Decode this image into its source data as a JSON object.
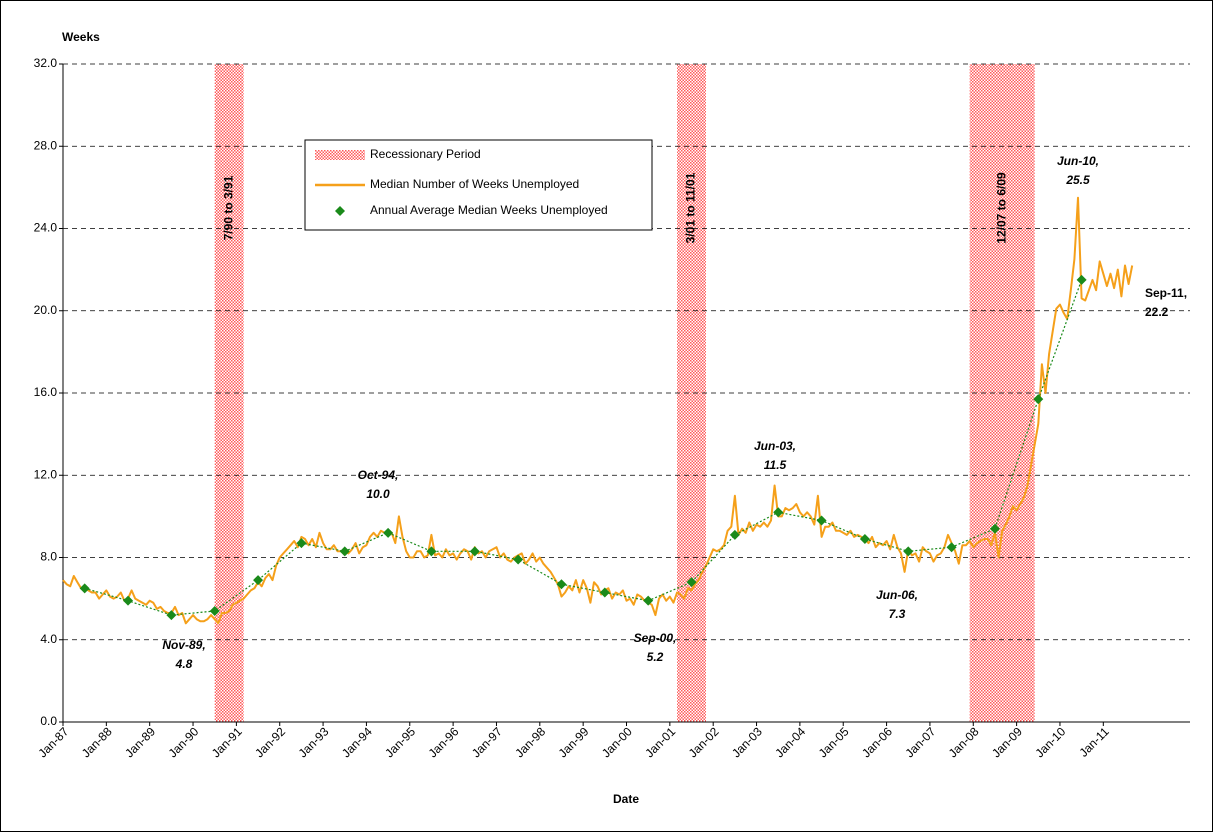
{
  "chart_data": {
    "type": "line",
    "y_label": "Weeks",
    "x_label": "Date",
    "xlim": [
      "Jan-87",
      "Jan-13"
    ],
    "xticks": [
      "Jan-87",
      "Jan-88",
      "Jan-89",
      "Jan-90",
      "Jan-91",
      "Jan-92",
      "Jan-93",
      "Jan-94",
      "Jan-95",
      "Jan-96",
      "Jan-97",
      "Jan-98",
      "Jan-99",
      "Jan-00",
      "Jan-01",
      "Jan-02",
      "Jan-03",
      "Jan-04",
      "Jan-05",
      "Jan-06",
      "Jan-07",
      "Jan-08",
      "Jan-09",
      "Jan-10",
      "Jan-11"
    ],
    "ylim": [
      0,
      32
    ],
    "yticks": [
      {
        "value": 0,
        "label": "0.0"
      },
      {
        "value": 4,
        "label": "4.0"
      },
      {
        "value": 8,
        "label": "8.0"
      },
      {
        "value": 12,
        "label": "12.0"
      },
      {
        "value": 16,
        "label": "16.0"
      },
      {
        "value": 20,
        "label": "20.0"
      },
      {
        "value": 24,
        "label": "24.0"
      },
      {
        "value": 28,
        "label": "28.0"
      },
      {
        "value": 32,
        "label": "32.0"
      }
    ],
    "grid": true,
    "recession_name": "Recessionary Period",
    "recession_color": "#ff5a5a",
    "recessions": [
      {
        "label": "7/90 to 3/91",
        "start": "Jul-90",
        "end": "Mar-91"
      },
      {
        "label": "3/01 to 11/01",
        "start": "Mar-01",
        "end": "Nov-01"
      },
      {
        "label": "12/07 to 6/09",
        "start": "Dec-07",
        "end": "Jun-09"
      }
    ],
    "series": [
      {
        "name": "Median Number of Weeks Unemployed",
        "color": "#f5a01a",
        "x": [
          "Jan-87",
          "Feb-87",
          "Mar-87",
          "Apr-87",
          "May-87",
          "Jun-87",
          "Jul-87",
          "Aug-87",
          "Sep-87",
          "Oct-87",
          "Nov-87",
          "Dec-87",
          "Jan-88",
          "Feb-88",
          "Mar-88",
          "Apr-88",
          "May-88",
          "Jun-88",
          "Jul-88",
          "Aug-88",
          "Sep-88",
          "Oct-88",
          "Nov-88",
          "Dec-88",
          "Jan-89",
          "Feb-89",
          "Mar-89",
          "Apr-89",
          "May-89",
          "Jun-89",
          "Jul-89",
          "Aug-89",
          "Sep-89",
          "Oct-89",
          "Nov-89",
          "Dec-89",
          "Jan-90",
          "Feb-90",
          "Mar-90",
          "Apr-90",
          "May-90",
          "Jun-90",
          "Jul-90",
          "Aug-90",
          "Sep-90",
          "Oct-90",
          "Nov-90",
          "Dec-90",
          "Jan-91",
          "Feb-91",
          "Mar-91",
          "Apr-91",
          "May-91",
          "Jun-91",
          "Jul-91",
          "Aug-91",
          "Sep-91",
          "Oct-91",
          "Nov-91",
          "Dec-91",
          "Jan-92",
          "Feb-92",
          "Mar-92",
          "Apr-92",
          "May-92",
          "Jun-92",
          "Jul-92",
          "Aug-92",
          "Sep-92",
          "Oct-92",
          "Nov-92",
          "Dec-92",
          "Jan-93",
          "Feb-93",
          "Mar-93",
          "Apr-93",
          "May-93",
          "Jun-93",
          "Jul-93",
          "Aug-93",
          "Sep-93",
          "Oct-93",
          "Nov-93",
          "Dec-93",
          "Jan-94",
          "Feb-94",
          "Mar-94",
          "Apr-94",
          "May-94",
          "Jun-94",
          "Jul-94",
          "Aug-94",
          "Sep-94",
          "Oct-94",
          "Nov-94",
          "Dec-94",
          "Jan-95",
          "Feb-95",
          "Mar-95",
          "Apr-95",
          "May-95",
          "Jun-95",
          "Jul-95",
          "Aug-95",
          "Sep-95",
          "Oct-95",
          "Nov-95",
          "Dec-95",
          "Jan-96",
          "Feb-96",
          "Mar-96",
          "Apr-96",
          "May-96",
          "Jun-96",
          "Jul-96",
          "Aug-96",
          "Sep-96",
          "Oct-96",
          "Nov-96",
          "Dec-96",
          "Jan-97",
          "Feb-97",
          "Mar-97",
          "Apr-97",
          "May-97",
          "Jun-97",
          "Jul-97",
          "Aug-97",
          "Sep-97",
          "Oct-97",
          "Nov-97",
          "Dec-97",
          "Jan-98",
          "Feb-98",
          "Mar-98",
          "Apr-98",
          "May-98",
          "Jun-98",
          "Jul-98",
          "Aug-98",
          "Sep-98",
          "Oct-98",
          "Nov-98",
          "Dec-98",
          "Jan-99",
          "Feb-99",
          "Mar-99",
          "Apr-99",
          "May-99",
          "Jun-99",
          "Jul-99",
          "Aug-99",
          "Sep-99",
          "Oct-99",
          "Nov-99",
          "Dec-99",
          "Jan-00",
          "Feb-00",
          "Mar-00",
          "Apr-00",
          "May-00",
          "Jun-00",
          "Jul-00",
          "Aug-00",
          "Sep-00",
          "Oct-00",
          "Nov-00",
          "Dec-00",
          "Jan-01",
          "Feb-01",
          "Mar-01",
          "Apr-01",
          "May-01",
          "Jun-01",
          "Jul-01",
          "Aug-01",
          "Sep-01",
          "Oct-01",
          "Nov-01",
          "Dec-01",
          "Jan-02",
          "Feb-02",
          "Mar-02",
          "Apr-02",
          "May-02",
          "Jun-02",
          "Jul-02",
          "Aug-02",
          "Sep-02",
          "Oct-02",
          "Nov-02",
          "Dec-02",
          "Jan-03",
          "Feb-03",
          "Mar-03",
          "Apr-03",
          "May-03",
          "Jun-03",
          "Jul-03",
          "Aug-03",
          "Sep-03",
          "Oct-03",
          "Nov-03",
          "Dec-03",
          "Jan-04",
          "Feb-04",
          "Mar-04",
          "Apr-04",
          "May-04",
          "Jun-04",
          "Jul-04",
          "Aug-04",
          "Sep-04",
          "Oct-04",
          "Nov-04",
          "Dec-04",
          "Jan-05",
          "Feb-05",
          "Mar-05",
          "Apr-05",
          "May-05",
          "Jun-05",
          "Jul-05",
          "Aug-05",
          "Sep-05",
          "Oct-05",
          "Nov-05",
          "Dec-05",
          "Jan-06",
          "Feb-06",
          "Mar-06",
          "Apr-06",
          "May-06",
          "Jun-06",
          "Jul-06",
          "Aug-06",
          "Sep-06",
          "Oct-06",
          "Nov-06",
          "Dec-06",
          "Jan-07",
          "Feb-07",
          "Mar-07",
          "Apr-07",
          "May-07",
          "Jun-07",
          "Jul-07",
          "Aug-07",
          "Sep-07",
          "Oct-07",
          "Nov-07",
          "Dec-07",
          "Jan-08",
          "Feb-08",
          "Mar-08",
          "Apr-08",
          "May-08",
          "Jun-08",
          "Jul-08",
          "Aug-08",
          "Sep-08",
          "Oct-08",
          "Nov-08",
          "Dec-08",
          "Jan-09",
          "Feb-09",
          "Mar-09",
          "Apr-09",
          "May-09",
          "Jun-09",
          "Jul-09",
          "Aug-09",
          "Sep-09",
          "Oct-09",
          "Nov-09",
          "Dec-09",
          "Jan-10",
          "Feb-10",
          "Mar-10",
          "Apr-10",
          "May-10",
          "Jun-10",
          "Jul-10",
          "Aug-10",
          "Sep-10",
          "Oct-10",
          "Nov-10",
          "Dec-10",
          "Jan-11",
          "Feb-11",
          "Mar-11",
          "Apr-11",
          "May-11",
          "Jun-11",
          "Jul-11",
          "Aug-11",
          "Sep-11"
        ],
        "values": [
          6.9,
          6.7,
          6.6,
          7.1,
          6.8,
          6.5,
          6.5,
          6.4,
          6.3,
          6.3,
          6.0,
          6.2,
          6.4,
          6.1,
          6.0,
          6.1,
          6.3,
          5.9,
          6.0,
          6.4,
          6.0,
          5.9,
          5.8,
          5.7,
          5.9,
          5.8,
          5.5,
          5.6,
          5.4,
          5.3,
          5.3,
          5.6,
          5.2,
          5.3,
          4.8,
          5.0,
          5.2,
          5.0,
          4.9,
          4.9,
          5.0,
          5.2,
          5.0,
          4.8,
          5.3,
          5.3,
          5.4,
          5.7,
          5.8,
          5.9,
          6.0,
          6.2,
          6.4,
          6.5,
          6.8,
          6.6,
          7.0,
          7.2,
          6.9,
          7.6,
          8.0,
          8.2,
          8.4,
          8.6,
          8.8,
          8.5,
          9.0,
          8.9,
          8.6,
          8.9,
          8.5,
          9.2,
          8.7,
          8.4,
          8.4,
          8.6,
          8.3,
          8.3,
          8.4,
          8.2,
          8.4,
          8.7,
          8.2,
          8.5,
          8.6,
          9.0,
          9.2,
          9.0,
          9.3,
          9.2,
          9.1,
          9.2,
          8.7,
          10.0,
          9.0,
          8.3,
          8.0,
          8.0,
          8.3,
          8.3,
          8.0,
          8.1,
          9.1,
          8.1,
          8.2,
          8.0,
          8.4,
          8.1,
          8.2,
          7.9,
          8.2,
          8.4,
          8.3,
          7.9,
          8.5,
          8.2,
          8.3,
          8.0,
          8.3,
          8.4,
          8.5,
          8.0,
          8.2,
          7.9,
          7.8,
          8.0,
          8.1,
          8.2,
          7.7,
          7.9,
          8.2,
          7.8,
          8.0,
          7.7,
          7.5,
          7.3,
          7.0,
          6.7,
          6.1,
          6.3,
          6.6,
          6.4,
          6.9,
          6.3,
          6.9,
          6.5,
          5.8,
          6.8,
          6.6,
          6.2,
          6.4,
          6.5,
          6.0,
          6.3,
          6.2,
          6.4,
          5.9,
          6.0,
          5.7,
          6.2,
          6.1,
          5.9,
          5.8,
          5.7,
          5.2,
          6.0,
          6.2,
          5.9,
          6.1,
          5.8,
          6.3,
          6.2,
          6.0,
          6.5,
          6.4,
          6.7,
          6.9,
          7.3,
          7.6,
          8.0,
          8.4,
          8.3,
          8.4,
          8.6,
          9.3,
          9.5,
          11.0,
          9.1,
          9.4,
          9.2,
          9.7,
          9.3,
          9.6,
          9.5,
          9.7,
          9.5,
          9.8,
          11.5,
          10.0,
          10.0,
          10.4,
          10.3,
          10.4,
          10.6,
          10.2,
          10.0,
          10.2,
          10.0,
          9.6,
          11.0,
          9.0,
          9.5,
          9.5,
          9.7,
          9.3,
          9.3,
          9.2,
          9.1,
          9.3,
          9.0,
          9.1,
          9.0,
          8.9,
          8.7,
          9.0,
          8.5,
          8.7,
          8.6,
          8.8,
          8.4,
          9.1,
          8.5,
          8.2,
          7.3,
          8.4,
          8.1,
          8.2,
          7.8,
          8.5,
          8.3,
          8.2,
          7.8,
          8.1,
          8.2,
          8.5,
          9.1,
          8.7,
          8.3,
          7.7,
          8.6,
          8.6,
          8.8,
          8.5,
          8.7,
          8.8,
          8.9,
          8.9,
          8.6,
          9.2,
          8.0,
          9.3,
          9.6,
          10.0,
          10.5,
          10.3,
          10.6,
          10.9,
          11.5,
          12.5,
          13.5,
          14.5,
          17.4,
          16.0,
          17.9,
          19.0,
          20.1,
          20.3,
          19.9,
          19.6,
          21.0,
          22.5,
          25.5,
          20.6,
          20.5,
          21.0,
          21.5,
          21.0,
          22.4,
          21.8,
          21.2,
          21.8,
          21.1,
          22.0,
          20.7,
          22.2,
          21.3,
          22.2
        ]
      },
      {
        "name": "Annual Average Median Weeks Unemployed",
        "color": "#1a8a1a",
        "marker": "diamond",
        "trendline": "dotted",
        "x": [
          "Jul-87",
          "Jul-88",
          "Jul-89",
          "Jul-90",
          "Jul-91",
          "Jul-92",
          "Jul-93",
          "Jul-94",
          "Jul-95",
          "Jul-96",
          "Jul-97",
          "Jul-98",
          "Jul-99",
          "Jul-00",
          "Jul-01",
          "Jul-02",
          "Jul-03",
          "Jul-04",
          "Jul-05",
          "Jul-06",
          "Jul-07",
          "Jul-08",
          "Jul-09",
          "Jul-10"
        ],
        "values": [
          6.5,
          5.9,
          5.2,
          5.4,
          6.9,
          8.7,
          8.3,
          9.2,
          8.3,
          8.3,
          7.9,
          6.7,
          6.3,
          5.9,
          6.8,
          9.1,
          10.2,
          9.8,
          8.9,
          8.3,
          8.5,
          9.4,
          15.7,
          21.5
        ]
      }
    ],
    "annotations": [
      {
        "lines": [
          "Nov-89,",
          "4.8"
        ]
      },
      {
        "lines": [
          "Oct-94,",
          "10.0"
        ]
      },
      {
        "lines": [
          "Sep-00,",
          "5.2"
        ]
      },
      {
        "lines": [
          "Jun-03,",
          "11.5"
        ]
      },
      {
        "lines": [
          "Jun-06,",
          "7.3"
        ]
      },
      {
        "lines": [
          "Jun-10,",
          "25.5"
        ]
      },
      {
        "lines": [
          "Sep-11,",
          "22.2"
        ]
      }
    ]
  }
}
